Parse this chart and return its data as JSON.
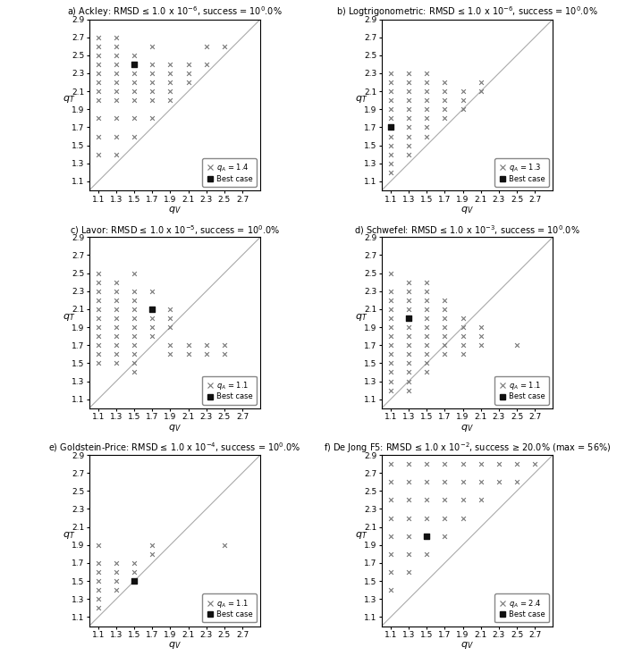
{
  "subplots": [
    {
      "title": "a) Ackley: RMSD ≤ 1.0 x 10⁻⁶, success = 100.0%",
      "qa_label": "q_A = 1.4",
      "best": [
        1.5,
        2.4
      ],
      "points": [
        [
          1.1,
          1.4
        ],
        [
          1.1,
          1.6
        ],
        [
          1.1,
          1.8
        ],
        [
          1.1,
          2.0
        ],
        [
          1.1,
          2.1
        ],
        [
          1.1,
          2.2
        ],
        [
          1.1,
          2.3
        ],
        [
          1.1,
          2.4
        ],
        [
          1.1,
          2.5
        ],
        [
          1.1,
          2.6
        ],
        [
          1.1,
          2.7
        ],
        [
          1.3,
          1.4
        ],
        [
          1.3,
          1.6
        ],
        [
          1.3,
          1.8
        ],
        [
          1.3,
          2.0
        ],
        [
          1.3,
          2.1
        ],
        [
          1.3,
          2.2
        ],
        [
          1.3,
          2.3
        ],
        [
          1.3,
          2.4
        ],
        [
          1.3,
          2.5
        ],
        [
          1.3,
          2.6
        ],
        [
          1.3,
          2.7
        ],
        [
          1.5,
          1.6
        ],
        [
          1.5,
          1.8
        ],
        [
          1.5,
          2.0
        ],
        [
          1.5,
          2.1
        ],
        [
          1.5,
          2.2
        ],
        [
          1.5,
          2.3
        ],
        [
          1.5,
          2.5
        ],
        [
          1.7,
          1.8
        ],
        [
          1.7,
          2.0
        ],
        [
          1.7,
          2.1
        ],
        [
          1.7,
          2.2
        ],
        [
          1.7,
          2.3
        ],
        [
          1.7,
          2.4
        ],
        [
          1.7,
          2.6
        ],
        [
          1.9,
          2.0
        ],
        [
          1.9,
          2.1
        ],
        [
          1.9,
          2.2
        ],
        [
          1.9,
          2.3
        ],
        [
          1.9,
          2.4
        ],
        [
          2.1,
          2.2
        ],
        [
          2.1,
          2.3
        ],
        [
          2.1,
          2.4
        ],
        [
          2.3,
          2.4
        ],
        [
          2.3,
          2.6
        ],
        [
          2.5,
          2.6
        ]
      ]
    },
    {
      "title": "b) Logtrigonometric: RMSD ≤ 1.0 x 10⁻⁶, success = 100.0%",
      "qa_label": "q_A = 1.3",
      "best": [
        1.1,
        1.7
      ],
      "points": [
        [
          1.1,
          1.2
        ],
        [
          1.1,
          1.3
        ],
        [
          1.1,
          1.4
        ],
        [
          1.1,
          1.5
        ],
        [
          1.1,
          1.6
        ],
        [
          1.1,
          1.7
        ],
        [
          1.1,
          1.8
        ],
        [
          1.1,
          1.9
        ],
        [
          1.1,
          2.0
        ],
        [
          1.1,
          2.1
        ],
        [
          1.1,
          2.2
        ],
        [
          1.1,
          2.3
        ],
        [
          1.3,
          1.4
        ],
        [
          1.3,
          1.5
        ],
        [
          1.3,
          1.6
        ],
        [
          1.3,
          1.7
        ],
        [
          1.3,
          1.8
        ],
        [
          1.3,
          1.9
        ],
        [
          1.3,
          2.0
        ],
        [
          1.3,
          2.1
        ],
        [
          1.3,
          2.2
        ],
        [
          1.3,
          2.3
        ],
        [
          1.5,
          1.6
        ],
        [
          1.5,
          1.7
        ],
        [
          1.5,
          1.8
        ],
        [
          1.5,
          1.9
        ],
        [
          1.5,
          2.0
        ],
        [
          1.5,
          2.1
        ],
        [
          1.5,
          2.2
        ],
        [
          1.5,
          2.3
        ],
        [
          1.7,
          1.8
        ],
        [
          1.7,
          1.9
        ],
        [
          1.7,
          2.0
        ],
        [
          1.7,
          2.1
        ],
        [
          1.7,
          2.2
        ],
        [
          1.9,
          1.9
        ],
        [
          1.9,
          2.0
        ],
        [
          1.9,
          2.1
        ],
        [
          2.1,
          2.1
        ],
        [
          2.1,
          2.2
        ]
      ]
    },
    {
      "title": "c) Lavor: RMSD ≤ 1.0 x 10⁻⁵, success = 100.0%",
      "qa_label": "q_A = 1.1",
      "best": [
        1.7,
        2.1
      ],
      "points": [
        [
          1.1,
          1.5
        ],
        [
          1.1,
          1.6
        ],
        [
          1.1,
          1.7
        ],
        [
          1.1,
          1.8
        ],
        [
          1.1,
          1.9
        ],
        [
          1.1,
          2.0
        ],
        [
          1.1,
          2.1
        ],
        [
          1.1,
          2.2
        ],
        [
          1.1,
          2.3
        ],
        [
          1.1,
          2.4
        ],
        [
          1.1,
          2.5
        ],
        [
          1.3,
          1.5
        ],
        [
          1.3,
          1.6
        ],
        [
          1.3,
          1.7
        ],
        [
          1.3,
          1.8
        ],
        [
          1.3,
          1.9
        ],
        [
          1.3,
          2.0
        ],
        [
          1.3,
          2.1
        ],
        [
          1.3,
          2.2
        ],
        [
          1.3,
          2.3
        ],
        [
          1.3,
          2.4
        ],
        [
          1.5,
          1.4
        ],
        [
          1.5,
          1.5
        ],
        [
          1.5,
          1.6
        ],
        [
          1.5,
          1.7
        ],
        [
          1.5,
          1.8
        ],
        [
          1.5,
          1.9
        ],
        [
          1.5,
          2.0
        ],
        [
          1.5,
          2.1
        ],
        [
          1.5,
          2.2
        ],
        [
          1.5,
          2.3
        ],
        [
          1.5,
          2.5
        ],
        [
          1.7,
          1.8
        ],
        [
          1.7,
          1.9
        ],
        [
          1.7,
          2.0
        ],
        [
          1.7,
          2.1
        ],
        [
          1.7,
          2.3
        ],
        [
          1.9,
          1.6
        ],
        [
          1.9,
          1.7
        ],
        [
          1.9,
          1.9
        ],
        [
          1.9,
          2.0
        ],
        [
          1.9,
          2.1
        ],
        [
          2.1,
          1.6
        ],
        [
          2.1,
          1.7
        ],
        [
          2.3,
          1.6
        ],
        [
          2.3,
          1.7
        ],
        [
          2.5,
          1.6
        ],
        [
          2.5,
          1.7
        ]
      ]
    },
    {
      "title": "d) Schwefel: RMSD ≤ 1.0 x 10⁻³, success = 100.0%",
      "qa_label": "q_A = 1.1",
      "best": [
        1.3,
        2.0
      ],
      "points": [
        [
          1.1,
          1.2
        ],
        [
          1.1,
          1.3
        ],
        [
          1.1,
          1.4
        ],
        [
          1.1,
          1.5
        ],
        [
          1.1,
          1.6
        ],
        [
          1.1,
          1.7
        ],
        [
          1.1,
          1.8
        ],
        [
          1.1,
          1.9
        ],
        [
          1.1,
          2.0
        ],
        [
          1.1,
          2.1
        ],
        [
          1.1,
          2.2
        ],
        [
          1.1,
          2.3
        ],
        [
          1.1,
          2.5
        ],
        [
          1.3,
          1.2
        ],
        [
          1.3,
          1.3
        ],
        [
          1.3,
          1.4
        ],
        [
          1.3,
          1.5
        ],
        [
          1.3,
          1.6
        ],
        [
          1.3,
          1.7
        ],
        [
          1.3,
          1.8
        ],
        [
          1.3,
          1.9
        ],
        [
          1.3,
          2.0
        ],
        [
          1.3,
          2.1
        ],
        [
          1.3,
          2.2
        ],
        [
          1.3,
          2.3
        ],
        [
          1.3,
          2.4
        ],
        [
          1.5,
          1.4
        ],
        [
          1.5,
          1.5
        ],
        [
          1.5,
          1.6
        ],
        [
          1.5,
          1.7
        ],
        [
          1.5,
          1.8
        ],
        [
          1.5,
          1.9
        ],
        [
          1.5,
          2.0
        ],
        [
          1.5,
          2.1
        ],
        [
          1.5,
          2.2
        ],
        [
          1.5,
          2.3
        ],
        [
          1.5,
          2.4
        ],
        [
          1.7,
          1.6
        ],
        [
          1.7,
          1.7
        ],
        [
          1.7,
          1.8
        ],
        [
          1.7,
          1.9
        ],
        [
          1.7,
          2.0
        ],
        [
          1.7,
          2.1
        ],
        [
          1.7,
          2.2
        ],
        [
          1.9,
          1.6
        ],
        [
          1.9,
          1.7
        ],
        [
          1.9,
          1.8
        ],
        [
          1.9,
          1.9
        ],
        [
          1.9,
          2.0
        ],
        [
          2.1,
          1.8
        ],
        [
          2.1,
          1.7
        ],
        [
          2.1,
          1.9
        ],
        [
          2.5,
          1.7
        ]
      ]
    },
    {
      "title": "e) Goldstein-Price: RMSD ≤ 1.0 x 10⁻⁴, success = 100.0%",
      "qa_label": "q_A = 1.1",
      "best": [
        1.5,
        1.5
      ],
      "points": [
        [
          1.1,
          1.2
        ],
        [
          1.1,
          1.3
        ],
        [
          1.1,
          1.4
        ],
        [
          1.1,
          1.5
        ],
        [
          1.1,
          1.6
        ],
        [
          1.1,
          1.7
        ],
        [
          1.1,
          1.9
        ],
        [
          1.3,
          1.4
        ],
        [
          1.3,
          1.5
        ],
        [
          1.3,
          1.6
        ],
        [
          1.3,
          1.7
        ],
        [
          1.5,
          1.6
        ],
        [
          1.5,
          1.7
        ],
        [
          1.7,
          1.8
        ],
        [
          1.7,
          1.9
        ],
        [
          2.5,
          1.9
        ]
      ]
    },
    {
      "title": "f) De Jong F5: RMSD ≤ 1.0 x 10⁻², success ≥ 20.0% (max = 56%)",
      "qa_label": "q_A = 2.4",
      "best": [
        1.5,
        2.0
      ],
      "points": [
        [
          1.1,
          1.4
        ],
        [
          1.1,
          1.6
        ],
        [
          1.1,
          1.8
        ],
        [
          1.1,
          2.0
        ],
        [
          1.1,
          2.2
        ],
        [
          1.1,
          2.4
        ],
        [
          1.1,
          2.6
        ],
        [
          1.1,
          2.8
        ],
        [
          1.3,
          1.6
        ],
        [
          1.3,
          1.8
        ],
        [
          1.3,
          2.0
        ],
        [
          1.3,
          2.2
        ],
        [
          1.3,
          2.4
        ],
        [
          1.3,
          2.6
        ],
        [
          1.3,
          2.8
        ],
        [
          1.5,
          1.8
        ],
        [
          1.5,
          2.0
        ],
        [
          1.5,
          2.2
        ],
        [
          1.5,
          2.4
        ],
        [
          1.5,
          2.6
        ],
        [
          1.5,
          2.8
        ],
        [
          1.7,
          2.0
        ],
        [
          1.7,
          2.2
        ],
        [
          1.7,
          2.4
        ],
        [
          1.7,
          2.6
        ],
        [
          1.7,
          2.8
        ],
        [
          1.9,
          2.2
        ],
        [
          1.9,
          2.4
        ],
        [
          1.9,
          2.6
        ],
        [
          1.9,
          2.8
        ],
        [
          2.1,
          2.4
        ],
        [
          2.1,
          2.6
        ],
        [
          2.1,
          2.8
        ],
        [
          2.3,
          2.6
        ],
        [
          2.3,
          2.8
        ],
        [
          2.5,
          2.6
        ],
        [
          2.5,
          2.8
        ],
        [
          2.7,
          2.8
        ]
      ]
    }
  ],
  "xlim": [
    1.0,
    2.9
  ],
  "ylim": [
    1.0,
    2.9
  ],
  "xticks": [
    1.1,
    1.3,
    1.5,
    1.7,
    1.9,
    2.1,
    2.3,
    2.5,
    2.7
  ],
  "yticks": [
    1.1,
    1.3,
    1.5,
    1.7,
    1.9,
    2.1,
    2.3,
    2.5,
    2.7,
    2.9
  ],
  "diag_line_color": "#aaaaaa",
  "marker_color": "#777777",
  "best_color": "#111111",
  "xlabel": "q_V",
  "ylabel": "q_T"
}
